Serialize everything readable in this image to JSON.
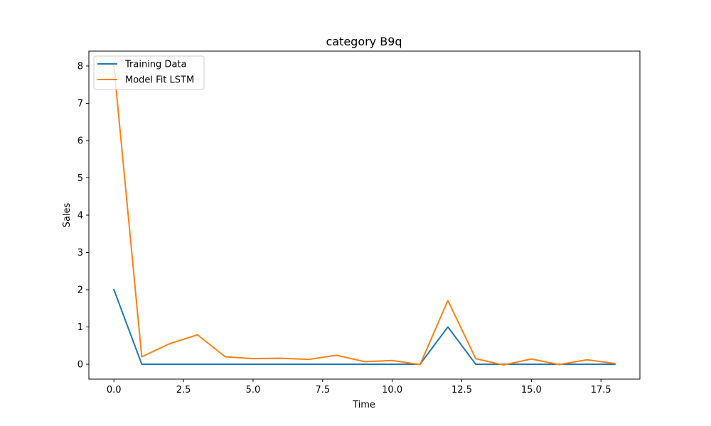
{
  "chart_data": {
    "type": "line",
    "title": "category B9q",
    "xlabel": "Time",
    "ylabel": "Sales",
    "xlim": [
      -0.9,
      18.9
    ],
    "ylim": [
      -0.4,
      8.4
    ],
    "xticks": [
      0.0,
      2.5,
      5.0,
      7.5,
      10.0,
      12.5,
      15.0,
      17.5
    ],
    "xtick_labels": [
      "0.0",
      "2.5",
      "5.0",
      "7.5",
      "10.0",
      "12.5",
      "15.0",
      "17.5"
    ],
    "yticks": [
      0,
      1,
      2,
      3,
      4,
      5,
      6,
      7,
      8
    ],
    "ytick_labels": [
      "0",
      "1",
      "2",
      "3",
      "4",
      "5",
      "6",
      "7",
      "8"
    ],
    "grid": false,
    "legend_position": "top-left",
    "x": [
      0,
      1,
      2,
      3,
      4,
      5,
      6,
      7,
      8,
      9,
      10,
      11,
      12,
      13,
      14,
      15,
      16,
      17,
      18
    ],
    "series": [
      {
        "name": "Training Data",
        "color": "#1f77b4",
        "values": [
          2,
          0,
          0,
          0,
          0,
          0,
          0,
          0,
          0,
          0,
          0,
          0,
          1,
          0,
          0,
          0,
          0,
          0,
          0
        ]
      },
      {
        "name": "Model Fit LSTM",
        "color": "#ff7f0e",
        "values": [
          8.0,
          0.2,
          0.55,
          0.79,
          0.2,
          0.15,
          0.16,
          0.13,
          0.24,
          0.07,
          0.1,
          -0.01,
          1.71,
          0.15,
          -0.02,
          0.14,
          -0.01,
          0.12,
          0.02
        ]
      }
    ]
  }
}
